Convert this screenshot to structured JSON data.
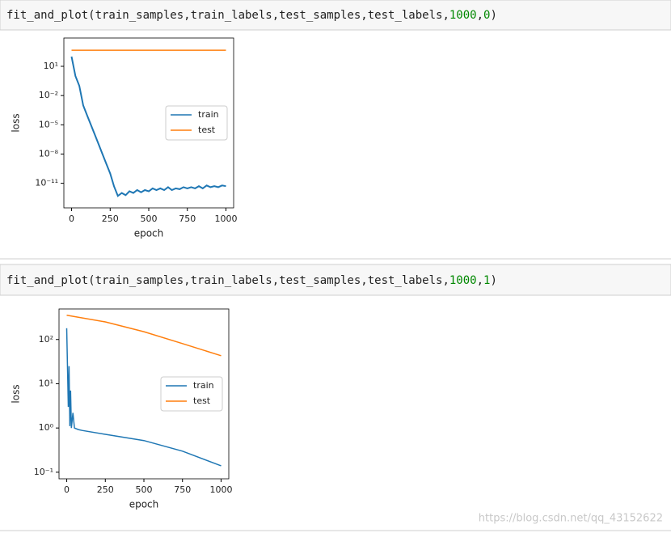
{
  "cells": [
    {
      "code": [
        "fit_and_plot(train_samples,train_labels,test_samples,test_labels,",
        "1000",
        ",",
        "0",
        ")"
      ]
    },
    {
      "code": [
        "fit_and_plot(train_samples,train_labels,test_samples,test_labels,",
        "1000",
        ",",
        "1",
        ")"
      ]
    }
  ],
  "watermark": "https://blog.csdn.net/qq_43152622",
  "chart_data": [
    {
      "type": "line",
      "xlabel": "epoch",
      "ylabel": "loss",
      "y_scale": "log",
      "legend": "center right",
      "xlim": [
        -50,
        1050
      ],
      "xticks": [
        0,
        250,
        500,
        750,
        1000
      ],
      "ylim": [
        3e-14,
        8000
      ],
      "yticks": [
        {
          "value": 10,
          "label": "10¹"
        },
        {
          "value": 0.01,
          "label": "10⁻²"
        },
        {
          "value": 1e-05,
          "label": "10⁻⁵"
        },
        {
          "value": 1e-08,
          "label": "10⁻⁸"
        },
        {
          "value": 1e-11,
          "label": "10⁻¹¹"
        }
      ],
      "series": [
        {
          "name": "train",
          "color": "#1f77b4",
          "x": [
            0,
            25,
            50,
            75,
            100,
            125,
            150,
            175,
            200,
            225,
            250,
            275,
            300,
            325,
            350,
            375,
            400,
            425,
            450,
            475,
            500,
            525,
            550,
            575,
            600,
            625,
            650,
            675,
            700,
            725,
            750,
            775,
            800,
            825,
            850,
            875,
            900,
            925,
            950,
            975,
            1000
          ],
          "values": [
            100,
            1,
            0.1,
            0.001,
            0.0001,
            1e-05,
            1e-06,
            1e-07,
            1e-08,
            1e-09,
            1e-10,
            5e-12,
            5e-13,
            1e-12,
            6e-13,
            1.5e-12,
            1e-12,
            2e-12,
            1.2e-12,
            2e-12,
            1.5e-12,
            3e-12,
            2e-12,
            3e-12,
            2e-12,
            4e-12,
            2e-12,
            3e-12,
            2.5e-12,
            4e-12,
            3e-12,
            4e-12,
            3e-12,
            5e-12,
            3e-12,
            6e-12,
            4e-12,
            5e-12,
            4e-12,
            6e-12,
            5e-12
          ]
        },
        {
          "name": "test",
          "color": "#ff7f0e",
          "x": [
            0,
            1000
          ],
          "values": [
            450,
            450
          ]
        }
      ]
    },
    {
      "type": "line",
      "xlabel": "epoch",
      "ylabel": "loss",
      "y_scale": "log",
      "legend": "center right",
      "xlim": [
        -50,
        1050
      ],
      "xticks": [
        0,
        250,
        500,
        750,
        1000
      ],
      "ylim": [
        0.071,
        490
      ],
      "yticks": [
        {
          "value": 100,
          "label": "10²"
        },
        {
          "value": 10,
          "label": "10¹"
        },
        {
          "value": 1,
          "label": "10⁰"
        },
        {
          "value": 0.1,
          "label": "10⁻¹"
        }
      ],
      "series": [
        {
          "name": "train",
          "color": "#1f77b4",
          "x": [
            0,
            10,
            15,
            20,
            25,
            30,
            40,
            50,
            75,
            100,
            250,
            500,
            750,
            1000
          ],
          "values": [
            180,
            3,
            25,
            1.1,
            7,
            1.0,
            2.2,
            1.0,
            0.92,
            0.88,
            0.72,
            0.52,
            0.3,
            0.14
          ]
        },
        {
          "name": "test",
          "color": "#ff7f0e",
          "x": [
            0,
            250,
            500,
            750,
            1000
          ],
          "values": [
            355,
            250,
            150,
            81,
            43
          ]
        }
      ]
    }
  ]
}
